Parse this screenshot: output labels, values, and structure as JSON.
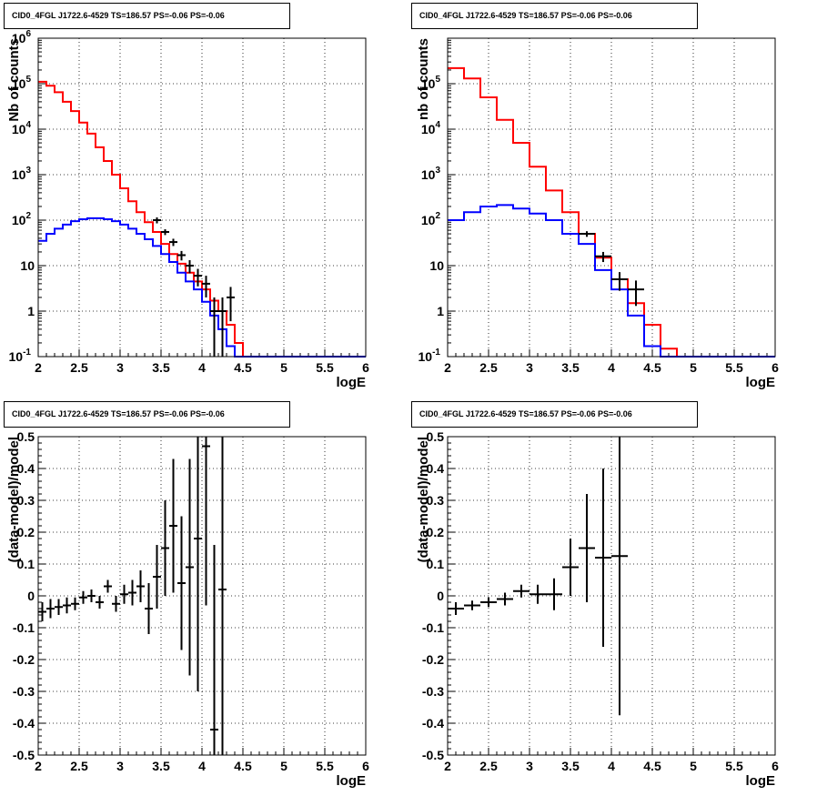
{
  "panels": {
    "top_left_title": "CID0_4FGL J1722.6-4529 TS=186.57 PS=-0.06 PS=-0.06",
    "top_right_title": "CID0_4FGL J1722.6-4529 TS=186.57 PS=-0.06 PS=-0.06",
    "bottom_left_title": "CID0_4FGL J1722.6-4529 TS=186.57 PS=-0.06 PS=-0.06",
    "bottom_right_title": "CID0_4FGL J1722.6-4529 TS=186.57 PS=-0.06 PS=-0.06"
  },
  "colors": {
    "red": "#ff0000",
    "blue": "#0000ff",
    "data": "#000000"
  },
  "chart_data": [
    {
      "id": "top_left",
      "type": "histogram",
      "title": "CID0_4FGL J1722.6-4529 TS=186.57 PS=-0.06 PS=-0.06",
      "xlabel": "logE",
      "ylabel": "Nb of counts",
      "xlim": [
        2,
        6
      ],
      "ylim": [
        0.1,
        1000000
      ],
      "yscale": "log",
      "grid": true,
      "x_ticks": [
        "2",
        "2.5",
        "3",
        "3.5",
        "4",
        "4.5",
        "5",
        "5.5",
        "6"
      ],
      "y_ticks": [
        "10^-1",
        "1",
        "10",
        "10^2",
        "10^3",
        "10^4",
        "10^5",
        "10^6"
      ],
      "bin_edges": [
        2.0,
        2.1,
        2.2,
        2.3,
        2.4,
        2.5,
        2.6,
        2.7,
        2.8,
        2.9,
        3.0,
        3.1,
        3.2,
        3.3,
        3.4,
        3.5,
        3.6,
        3.7,
        3.8,
        3.9,
        4.0,
        4.1,
        4.2,
        4.3,
        4.4,
        4.5,
        4.6,
        4.7,
        4.8,
        4.9,
        5.0,
        5.1,
        5.2,
        5.3,
        5.4,
        5.5,
        5.6,
        5.7,
        5.8,
        5.9,
        6.0
      ],
      "series": [
        {
          "color": "red",
          "values": [
            110000,
            90000,
            65000,
            40000,
            25000,
            14000,
            8000,
            4000,
            2000,
            1000,
            500,
            260,
            150,
            90,
            55,
            30,
            18,
            11,
            7,
            4.5,
            3,
            1.7,
            1.0,
            0.5,
            0.2,
            0.1,
            0.1,
            0.1,
            0.1,
            0.1,
            0.1,
            0.1,
            0.1,
            0.1,
            0.1,
            0.1,
            0.1,
            0.1,
            0.1,
            0.1
          ]
        },
        {
          "color": "blue",
          "values": [
            35,
            50,
            65,
            80,
            95,
            105,
            110,
            110,
            105,
            95,
            80,
            65,
            50,
            38,
            27,
            18,
            12,
            7,
            4.5,
            3,
            1.6,
            0.8,
            0.4,
            0.17,
            0.1,
            0.1,
            0.1,
            0.1,
            0.1,
            0.1,
            0.1,
            0.1,
            0.1,
            0.1,
            0.1,
            0.1,
            0.1,
            0.1,
            0.1,
            0.1
          ]
        }
      ],
      "points": [
        {
          "x": 3.45,
          "y": 100,
          "err": 15
        },
        {
          "x": 3.55,
          "y": 55,
          "err": 8
        },
        {
          "x": 3.65,
          "y": 33,
          "err": 6
        },
        {
          "x": 3.75,
          "y": 17,
          "err": 4
        },
        {
          "x": 3.85,
          "y": 10,
          "err": 3.2
        },
        {
          "x": 3.95,
          "y": 6,
          "err": 2.5
        },
        {
          "x": 4.05,
          "y": 4,
          "err": 2
        },
        {
          "x": 4.15,
          "y": 1.0,
          "err": 1.0
        },
        {
          "x": 4.25,
          "y": 1.0,
          "err": 1.0
        },
        {
          "x": 4.35,
          "y": 2,
          "err": 1.4
        }
      ]
    },
    {
      "id": "top_right",
      "type": "histogram",
      "title": "CID0_4FGL J1722.6-4529 TS=186.57 PS=-0.06 PS=-0.06",
      "xlabel": "logE",
      "ylabel": "nb of counts",
      "xlim": [
        2,
        6
      ],
      "ylim": [
        0.1,
        1000000
      ],
      "yscale": "log",
      "grid": true,
      "x_ticks": [
        "2",
        "2.5",
        "3",
        "3.5",
        "4",
        "4.5",
        "5",
        "5.5",
        "6"
      ],
      "y_ticks": [
        "10^-1",
        "1",
        "10",
        "10^2",
        "10^3",
        "10^4",
        "10^5"
      ],
      "bin_edges": [
        2.0,
        2.2,
        2.4,
        2.6,
        2.8,
        3.0,
        3.2,
        3.4,
        3.6,
        3.8,
        4.0,
        4.2,
        4.4,
        4.6,
        4.8,
        5.0,
        5.2,
        5.4,
        5.6,
        5.8,
        6.0
      ],
      "series": [
        {
          "color": "red",
          "values": [
            220000,
            130000,
            50000,
            16000,
            5000,
            1500,
            450,
            150,
            50,
            15,
            5,
            1.5,
            0.5,
            0.15,
            0.1,
            0.1,
            0.1,
            0.1,
            0.1,
            0.1
          ]
        },
        {
          "color": "blue",
          "values": [
            100,
            150,
            200,
            215,
            180,
            140,
            100,
            50,
            30,
            8,
            3,
            0.8,
            0.17,
            0.1,
            0.1,
            0.1,
            0.1,
            0.1,
            0.1,
            0.1
          ]
        }
      ],
      "points": [
        {
          "x": 3.7,
          "y": 50,
          "err": 7
        },
        {
          "x": 3.9,
          "y": 16,
          "err": 4
        },
        {
          "x": 4.1,
          "y": 5,
          "err": 2.2
        },
        {
          "x": 4.3,
          "y": 3,
          "err": 1.7
        }
      ]
    },
    {
      "id": "bottom_left",
      "type": "scatter",
      "title": "CID0_4FGL J1722.6-4529 TS=186.57 PS=-0.06 PS=-0.06",
      "xlabel": "logE",
      "ylabel": "(data-model)/model",
      "xlim": [
        2,
        6
      ],
      "ylim": [
        -0.5,
        0.5
      ],
      "grid": true,
      "x_ticks": [
        "2",
        "2.5",
        "3",
        "3.5",
        "4",
        "4.5",
        "5",
        "5.5",
        "6"
      ],
      "y_ticks": [
        "-0.5",
        "-0.4",
        "-0.3",
        "-0.2",
        "-0.1",
        "0",
        "0.1",
        "0.2",
        "0.3",
        "0.4",
        "0.5"
      ],
      "xerr": 0.05,
      "points": [
        {
          "x": 2.05,
          "y": -0.05,
          "err": 0.03
        },
        {
          "x": 2.15,
          "y": -0.04,
          "err": 0.03
        },
        {
          "x": 2.25,
          "y": -0.035,
          "err": 0.025
        },
        {
          "x": 2.35,
          "y": -0.03,
          "err": 0.025
        },
        {
          "x": 2.45,
          "y": -0.025,
          "err": 0.02
        },
        {
          "x": 2.55,
          "y": -0.005,
          "err": 0.02
        },
        {
          "x": 2.65,
          "y": 0.0,
          "err": 0.02
        },
        {
          "x": 2.75,
          "y": -0.02,
          "err": 0.02
        },
        {
          "x": 2.85,
          "y": 0.03,
          "err": 0.02
        },
        {
          "x": 2.95,
          "y": -0.025,
          "err": 0.025
        },
        {
          "x": 3.05,
          "y": 0.005,
          "err": 0.03
        },
        {
          "x": 3.15,
          "y": 0.01,
          "err": 0.04
        },
        {
          "x": 3.25,
          "y": 0.03,
          "err": 0.05
        },
        {
          "x": 3.35,
          "y": -0.04,
          "err": 0.08
        },
        {
          "x": 3.45,
          "y": 0.06,
          "err": 0.1
        },
        {
          "x": 3.55,
          "y": 0.15,
          "err": 0.15
        },
        {
          "x": 3.65,
          "y": 0.22,
          "err": 0.21
        },
        {
          "x": 3.75,
          "y": 0.04,
          "err": 0.21
        },
        {
          "x": 3.85,
          "y": 0.09,
          "err": 0.34
        },
        {
          "x": 3.95,
          "y": 0.18,
          "err": 0.48
        },
        {
          "x": 4.05,
          "y": 0.47,
          "err": 0.5
        },
        {
          "x": 4.15,
          "y": -0.42,
          "err": 0.58
        },
        {
          "x": 4.25,
          "y": 0.02,
          "err": 0.6
        }
      ]
    },
    {
      "id": "bottom_right",
      "type": "scatter",
      "title": "CID0_4FGL J1722.6-4529 TS=186.57 PS=-0.06 PS=-0.06",
      "xlabel": "logE",
      "ylabel": "(data-model)/model",
      "xlim": [
        2,
        6
      ],
      "ylim": [
        -0.5,
        0.5
      ],
      "grid": true,
      "x_ticks": [
        "2",
        "2.5",
        "3",
        "3.5",
        "4",
        "4.5",
        "5",
        "5.5",
        "6"
      ],
      "y_ticks": [
        "-0.5",
        "-0.4",
        "-0.3",
        "-0.2",
        "-0.1",
        "0",
        "0.1",
        "0.2",
        "0.3",
        "0.4",
        "0.5"
      ],
      "xerr": 0.1,
      "points": [
        {
          "x": 2.1,
          "y": -0.04,
          "err": 0.02
        },
        {
          "x": 2.3,
          "y": -0.03,
          "err": 0.015
        },
        {
          "x": 2.5,
          "y": -0.02,
          "err": 0.015
        },
        {
          "x": 2.7,
          "y": -0.01,
          "err": 0.02
        },
        {
          "x": 2.9,
          "y": 0.015,
          "err": 0.02
        },
        {
          "x": 3.1,
          "y": 0.005,
          "err": 0.03
        },
        {
          "x": 3.3,
          "y": 0.005,
          "err": 0.05
        },
        {
          "x": 3.5,
          "y": 0.09,
          "err": 0.09
        },
        {
          "x": 3.7,
          "y": 0.15,
          "err": 0.17
        },
        {
          "x": 3.9,
          "y": 0.12,
          "err": 0.28
        },
        {
          "x": 4.1,
          "y": 0.125,
          "err": 0.5
        }
      ]
    }
  ]
}
